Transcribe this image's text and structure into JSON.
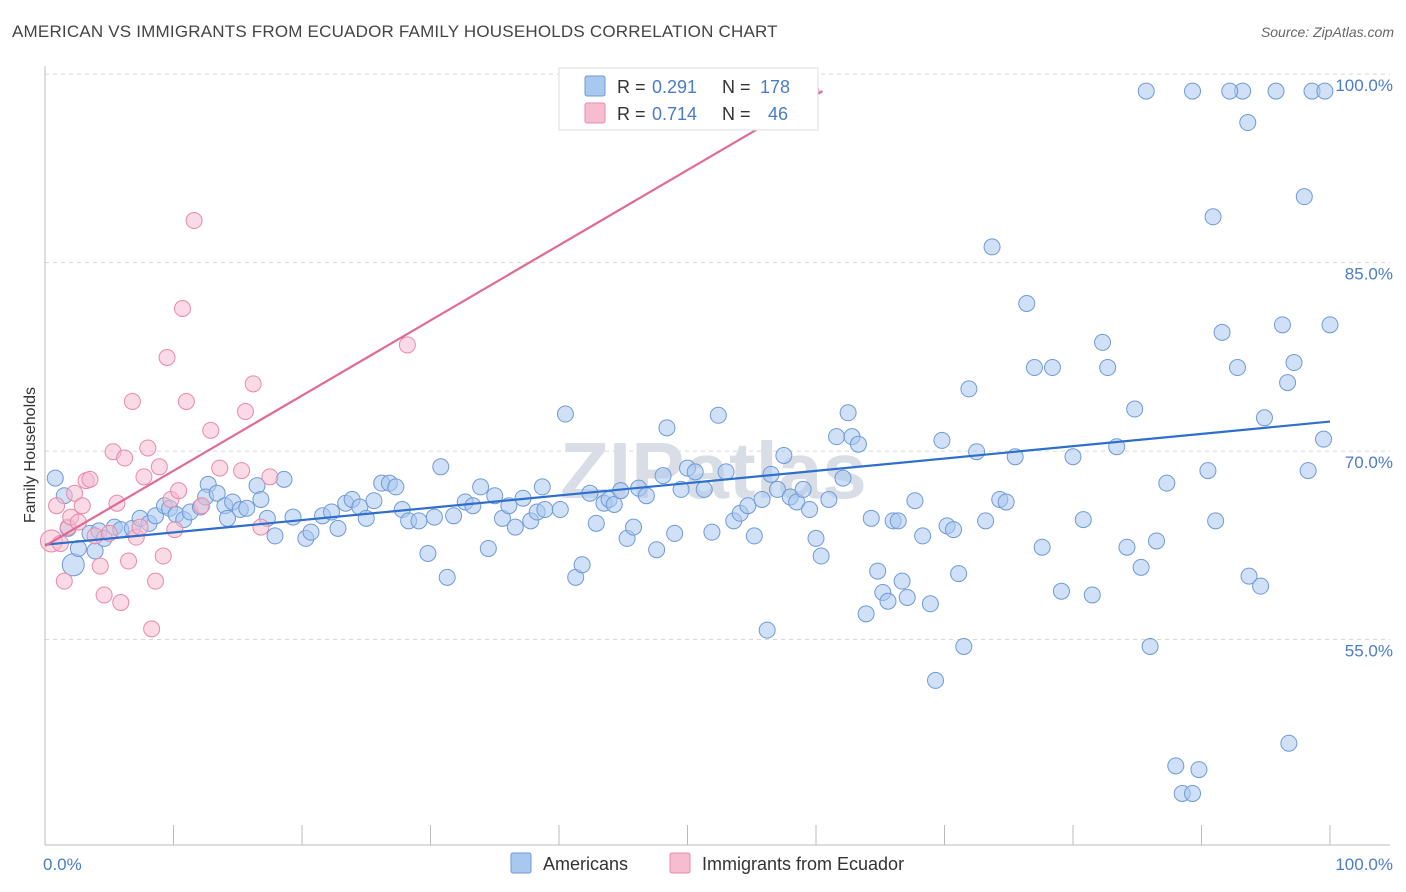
{
  "title": "AMERICAN VS IMMIGRANTS FROM ECUADOR FAMILY HOUSEHOLDS CORRELATION CHART",
  "source": "Source: ZipAtlas.com",
  "watermark": "ZIPatlas",
  "colors": {
    "americans_fill": "#a9c8f0",
    "americans_stroke": "#6f9ad6",
    "americans_line": "#2f6fcc",
    "ecuador_fill": "#f6bcd0",
    "ecuador_stroke": "#e88aa8",
    "ecuador_line": "#e06a93",
    "grid": "#d8d8d8",
    "tick_text": "#4a7cc9"
  },
  "legend_top": {
    "rows": [
      {
        "r_label": "R =",
        "r_value": "0.291",
        "n_label": "N =",
        "n_value": "178"
      },
      {
        "r_label": "R =",
        "r_value": "0.714",
        "n_label": "N =",
        "n_value": "46"
      }
    ]
  },
  "legend_bottom": {
    "items": [
      "Americans",
      "Immigrants from Ecuador"
    ]
  },
  "chart_data": {
    "type": "scatter",
    "ylabel": "Family Households",
    "xlabel": "",
    "xlim": [
      0,
      100
    ],
    "ylim": [
      40,
      102
    ],
    "x_tick_labels": [
      {
        "value": 0,
        "label": "0.0%"
      },
      {
        "value": 100,
        "label": "100.0%"
      }
    ],
    "y_tick_labels": [
      {
        "value": 55,
        "label": "55.0%"
      },
      {
        "value": 70,
        "label": "70.0%"
      },
      {
        "value": 85,
        "label": "85.0%"
      },
      {
        "value": 100,
        "label": "100.0%"
      }
    ],
    "grid": "horizontal dashed",
    "legend": "top-center and bottom-center",
    "series": [
      {
        "name": "Americans",
        "r": 0.291,
        "n": 178,
        "trend": [
          [
            0,
            63.9
          ],
          [
            100,
            73.7
          ]
        ],
        "points": [
          [
            0.8,
            69.2
          ],
          [
            1.5,
            67.8
          ],
          [
            1.8,
            65.2
          ],
          [
            2.2,
            62.3
          ],
          [
            2.6,
            63.6
          ],
          [
            3.5,
            64.8
          ],
          [
            3.9,
            63.4
          ],
          [
            4.2,
            65.0
          ],
          [
            4.6,
            64.4
          ],
          [
            5.4,
            65.3
          ],
          [
            5.9,
            65.1
          ],
          [
            6.8,
            65.2
          ],
          [
            7.4,
            66.0
          ],
          [
            8.1,
            65.6
          ],
          [
            8.6,
            66.2
          ],
          [
            9.3,
            67.0
          ],
          [
            9.7,
            66.8
          ],
          [
            10.2,
            66.3
          ],
          [
            10.8,
            65.9
          ],
          [
            11.3,
            66.5
          ],
          [
            12.1,
            66.9
          ],
          [
            12.7,
            68.7
          ],
          [
            12.5,
            67.7
          ],
          [
            13.4,
            68.0
          ],
          [
            14.0,
            67.0
          ],
          [
            14.2,
            66.0
          ],
          [
            14.6,
            67.3
          ],
          [
            15.2,
            66.7
          ],
          [
            15.7,
            66.8
          ],
          [
            16.5,
            68.6
          ],
          [
            16.8,
            67.5
          ],
          [
            17.3,
            66.0
          ],
          [
            17.9,
            64.6
          ],
          [
            18.6,
            69.1
          ],
          [
            19.3,
            66.1
          ],
          [
            20.3,
            64.4
          ],
          [
            20.7,
            64.9
          ],
          [
            21.6,
            66.2
          ],
          [
            22.3,
            66.5
          ],
          [
            22.8,
            65.2
          ],
          [
            23.4,
            67.2
          ],
          [
            23.9,
            67.5
          ],
          [
            24.5,
            66.9
          ],
          [
            25.0,
            66.0
          ],
          [
            25.6,
            67.4
          ],
          [
            26.2,
            68.8
          ],
          [
            26.8,
            68.8
          ],
          [
            27.3,
            68.5
          ],
          [
            27.8,
            66.7
          ],
          [
            28.3,
            65.8
          ],
          [
            29.1,
            65.8
          ],
          [
            29.8,
            63.2
          ],
          [
            30.3,
            66.1
          ],
          [
            30.8,
            70.1
          ],
          [
            31.3,
            61.3
          ],
          [
            31.8,
            66.2
          ],
          [
            32.7,
            67.3
          ],
          [
            33.3,
            67.0
          ],
          [
            33.9,
            68.5
          ],
          [
            34.5,
            63.6
          ],
          [
            35.0,
            67.8
          ],
          [
            35.6,
            66.0
          ],
          [
            36.1,
            67.0
          ],
          [
            36.6,
            65.3
          ],
          [
            37.2,
            67.6
          ],
          [
            37.8,
            65.8
          ],
          [
            38.3,
            66.5
          ],
          [
            38.7,
            68.5
          ],
          [
            38.9,
            66.7
          ],
          [
            40.1,
            66.7
          ],
          [
            40.5,
            74.3
          ],
          [
            41.3,
            61.3
          ],
          [
            41.8,
            62.3
          ],
          [
            42.4,
            68.0
          ],
          [
            42.9,
            65.6
          ],
          [
            43.5,
            67.2
          ],
          [
            43.9,
            67.5
          ],
          [
            44.3,
            67.1
          ],
          [
            44.8,
            68.2
          ],
          [
            45.3,
            64.4
          ],
          [
            45.8,
            65.3
          ],
          [
            46.2,
            68.4
          ],
          [
            46.8,
            67.8
          ],
          [
            47.6,
            63.5
          ],
          [
            48.1,
            69.4
          ],
          [
            48.4,
            73.2
          ],
          [
            49.0,
            64.8
          ],
          [
            49.5,
            68.3
          ],
          [
            50.0,
            70.0
          ],
          [
            50.6,
            69.7
          ],
          [
            51.3,
            68.3
          ],
          [
            51.9,
            64.9
          ],
          [
            52.4,
            74.2
          ],
          [
            53.0,
            69.7
          ],
          [
            53.6,
            65.8
          ],
          [
            54.1,
            66.4
          ],
          [
            54.7,
            67.0
          ],
          [
            55.2,
            64.6
          ],
          [
            55.8,
            67.5
          ],
          [
            56.2,
            57.1
          ],
          [
            56.5,
            69.5
          ],
          [
            57.0,
            68.3
          ],
          [
            57.5,
            71.0
          ],
          [
            58.0,
            67.7
          ],
          [
            58.5,
            67.3
          ],
          [
            59.0,
            68.3
          ],
          [
            59.5,
            66.7
          ],
          [
            60.0,
            64.4
          ],
          [
            60.4,
            63.0
          ],
          [
            61.0,
            67.5
          ],
          [
            61.6,
            72.5
          ],
          [
            62.1,
            69.2
          ],
          [
            62.5,
            74.4
          ],
          [
            62.8,
            72.5
          ],
          [
            63.3,
            71.9
          ],
          [
            63.9,
            58.4
          ],
          [
            64.3,
            66.0
          ],
          [
            64.8,
            61.8
          ],
          [
            65.2,
            60.1
          ],
          [
            65.6,
            59.4
          ],
          [
            66.0,
            65.8
          ],
          [
            66.4,
            65.8
          ],
          [
            66.7,
            61.0
          ],
          [
            67.1,
            59.7
          ],
          [
            67.7,
            67.4
          ],
          [
            68.3,
            64.6
          ],
          [
            68.9,
            59.2
          ],
          [
            69.3,
            53.1
          ],
          [
            69.8,
            72.2
          ],
          [
            70.2,
            65.4
          ],
          [
            70.7,
            65.1
          ],
          [
            71.1,
            61.6
          ],
          [
            71.5,
            55.8
          ],
          [
            71.9,
            76.3
          ],
          [
            72.5,
            71.3
          ],
          [
            73.2,
            65.8
          ],
          [
            73.7,
            87.6
          ],
          [
            74.3,
            67.5
          ],
          [
            74.8,
            67.3
          ],
          [
            75.5,
            70.9
          ],
          [
            76.4,
            83.1
          ],
          [
            77.0,
            78.0
          ],
          [
            77.6,
            63.7
          ],
          [
            78.4,
            78.0
          ],
          [
            79.1,
            60.2
          ],
          [
            80.0,
            70.9
          ],
          [
            80.8,
            65.9
          ],
          [
            81.5,
            59.9
          ],
          [
            82.3,
            80.0
          ],
          [
            82.7,
            78.0
          ],
          [
            83.4,
            71.7
          ],
          [
            84.2,
            63.7
          ],
          [
            84.8,
            74.7
          ],
          [
            85.3,
            62.1
          ],
          [
            86.0,
            55.8
          ],
          [
            86.5,
            64.2
          ],
          [
            87.3,
            68.8
          ],
          [
            88.0,
            46.3
          ],
          [
            88.5,
            44.1
          ],
          [
            89.3,
            44.1
          ],
          [
            89.8,
            46.0
          ],
          [
            90.5,
            69.8
          ],
          [
            91.1,
            65.8
          ],
          [
            91.6,
            80.8
          ],
          [
            92.8,
            78.0
          ],
          [
            93.7,
            61.4
          ],
          [
            94.6,
            60.6
          ],
          [
            94.9,
            74.0
          ],
          [
            96.3,
            81.4
          ],
          [
            96.7,
            76.8
          ],
          [
            97.2,
            78.4
          ],
          [
            98.6,
            100.0
          ],
          [
            99.6,
            100.0
          ],
          [
            96.8,
            48.1
          ],
          [
            95.8,
            100.0
          ],
          [
            93.2,
            100.0
          ],
          [
            92.2,
            100.0
          ],
          [
            93.6,
            97.5
          ],
          [
            90.9,
            90.0
          ],
          [
            98.3,
            69.8
          ],
          [
            99.5,
            72.3
          ],
          [
            98.0,
            91.6
          ],
          [
            100.0,
            81.4
          ],
          [
            85.7,
            100.0
          ],
          [
            89.3,
            100.0
          ]
        ]
      },
      {
        "name": "Immigrants from Ecuador",
        "r": 0.714,
        "n": 46,
        "trend": [
          [
            0,
            63.8
          ],
          [
            60.5,
            100.0
          ]
        ],
        "points": [
          [
            0.5,
            64.2
          ],
          [
            0.9,
            67.0
          ],
          [
            1.2,
            64.0
          ],
          [
            1.5,
            61.0
          ],
          [
            1.8,
            65.3
          ],
          [
            2.0,
            66.1
          ],
          [
            2.3,
            68.0
          ],
          [
            2.6,
            65.7
          ],
          [
            2.9,
            67.0
          ],
          [
            3.2,
            69.0
          ],
          [
            3.5,
            69.1
          ],
          [
            3.9,
            64.6
          ],
          [
            4.3,
            62.2
          ],
          [
            4.6,
            59.9
          ],
          [
            5.0,
            64.8
          ],
          [
            5.3,
            71.3
          ],
          [
            5.6,
            67.2
          ],
          [
            5.9,
            59.3
          ],
          [
            6.2,
            70.8
          ],
          [
            6.5,
            62.6
          ],
          [
            6.8,
            75.3
          ],
          [
            7.1,
            64.5
          ],
          [
            7.4,
            65.3
          ],
          [
            7.7,
            69.3
          ],
          [
            8.0,
            71.6
          ],
          [
            8.3,
            57.2
          ],
          [
            8.6,
            61.0
          ],
          [
            8.9,
            70.1
          ],
          [
            9.2,
            63.0
          ],
          [
            9.5,
            78.8
          ],
          [
            9.8,
            67.5
          ],
          [
            10.1,
            65.1
          ],
          [
            10.4,
            68.2
          ],
          [
            10.7,
            82.7
          ],
          [
            11.0,
            75.3
          ],
          [
            11.6,
            89.7
          ],
          [
            12.2,
            67.0
          ],
          [
            12.9,
            73.0
          ],
          [
            13.6,
            70.0
          ],
          [
            15.3,
            69.8
          ],
          [
            15.6,
            74.5
          ],
          [
            16.2,
            76.7
          ],
          [
            16.8,
            65.3
          ],
          [
            17.5,
            69.3
          ],
          [
            28.2,
            79.8
          ],
          [
            59.6,
            100.0
          ]
        ]
      }
    ]
  }
}
